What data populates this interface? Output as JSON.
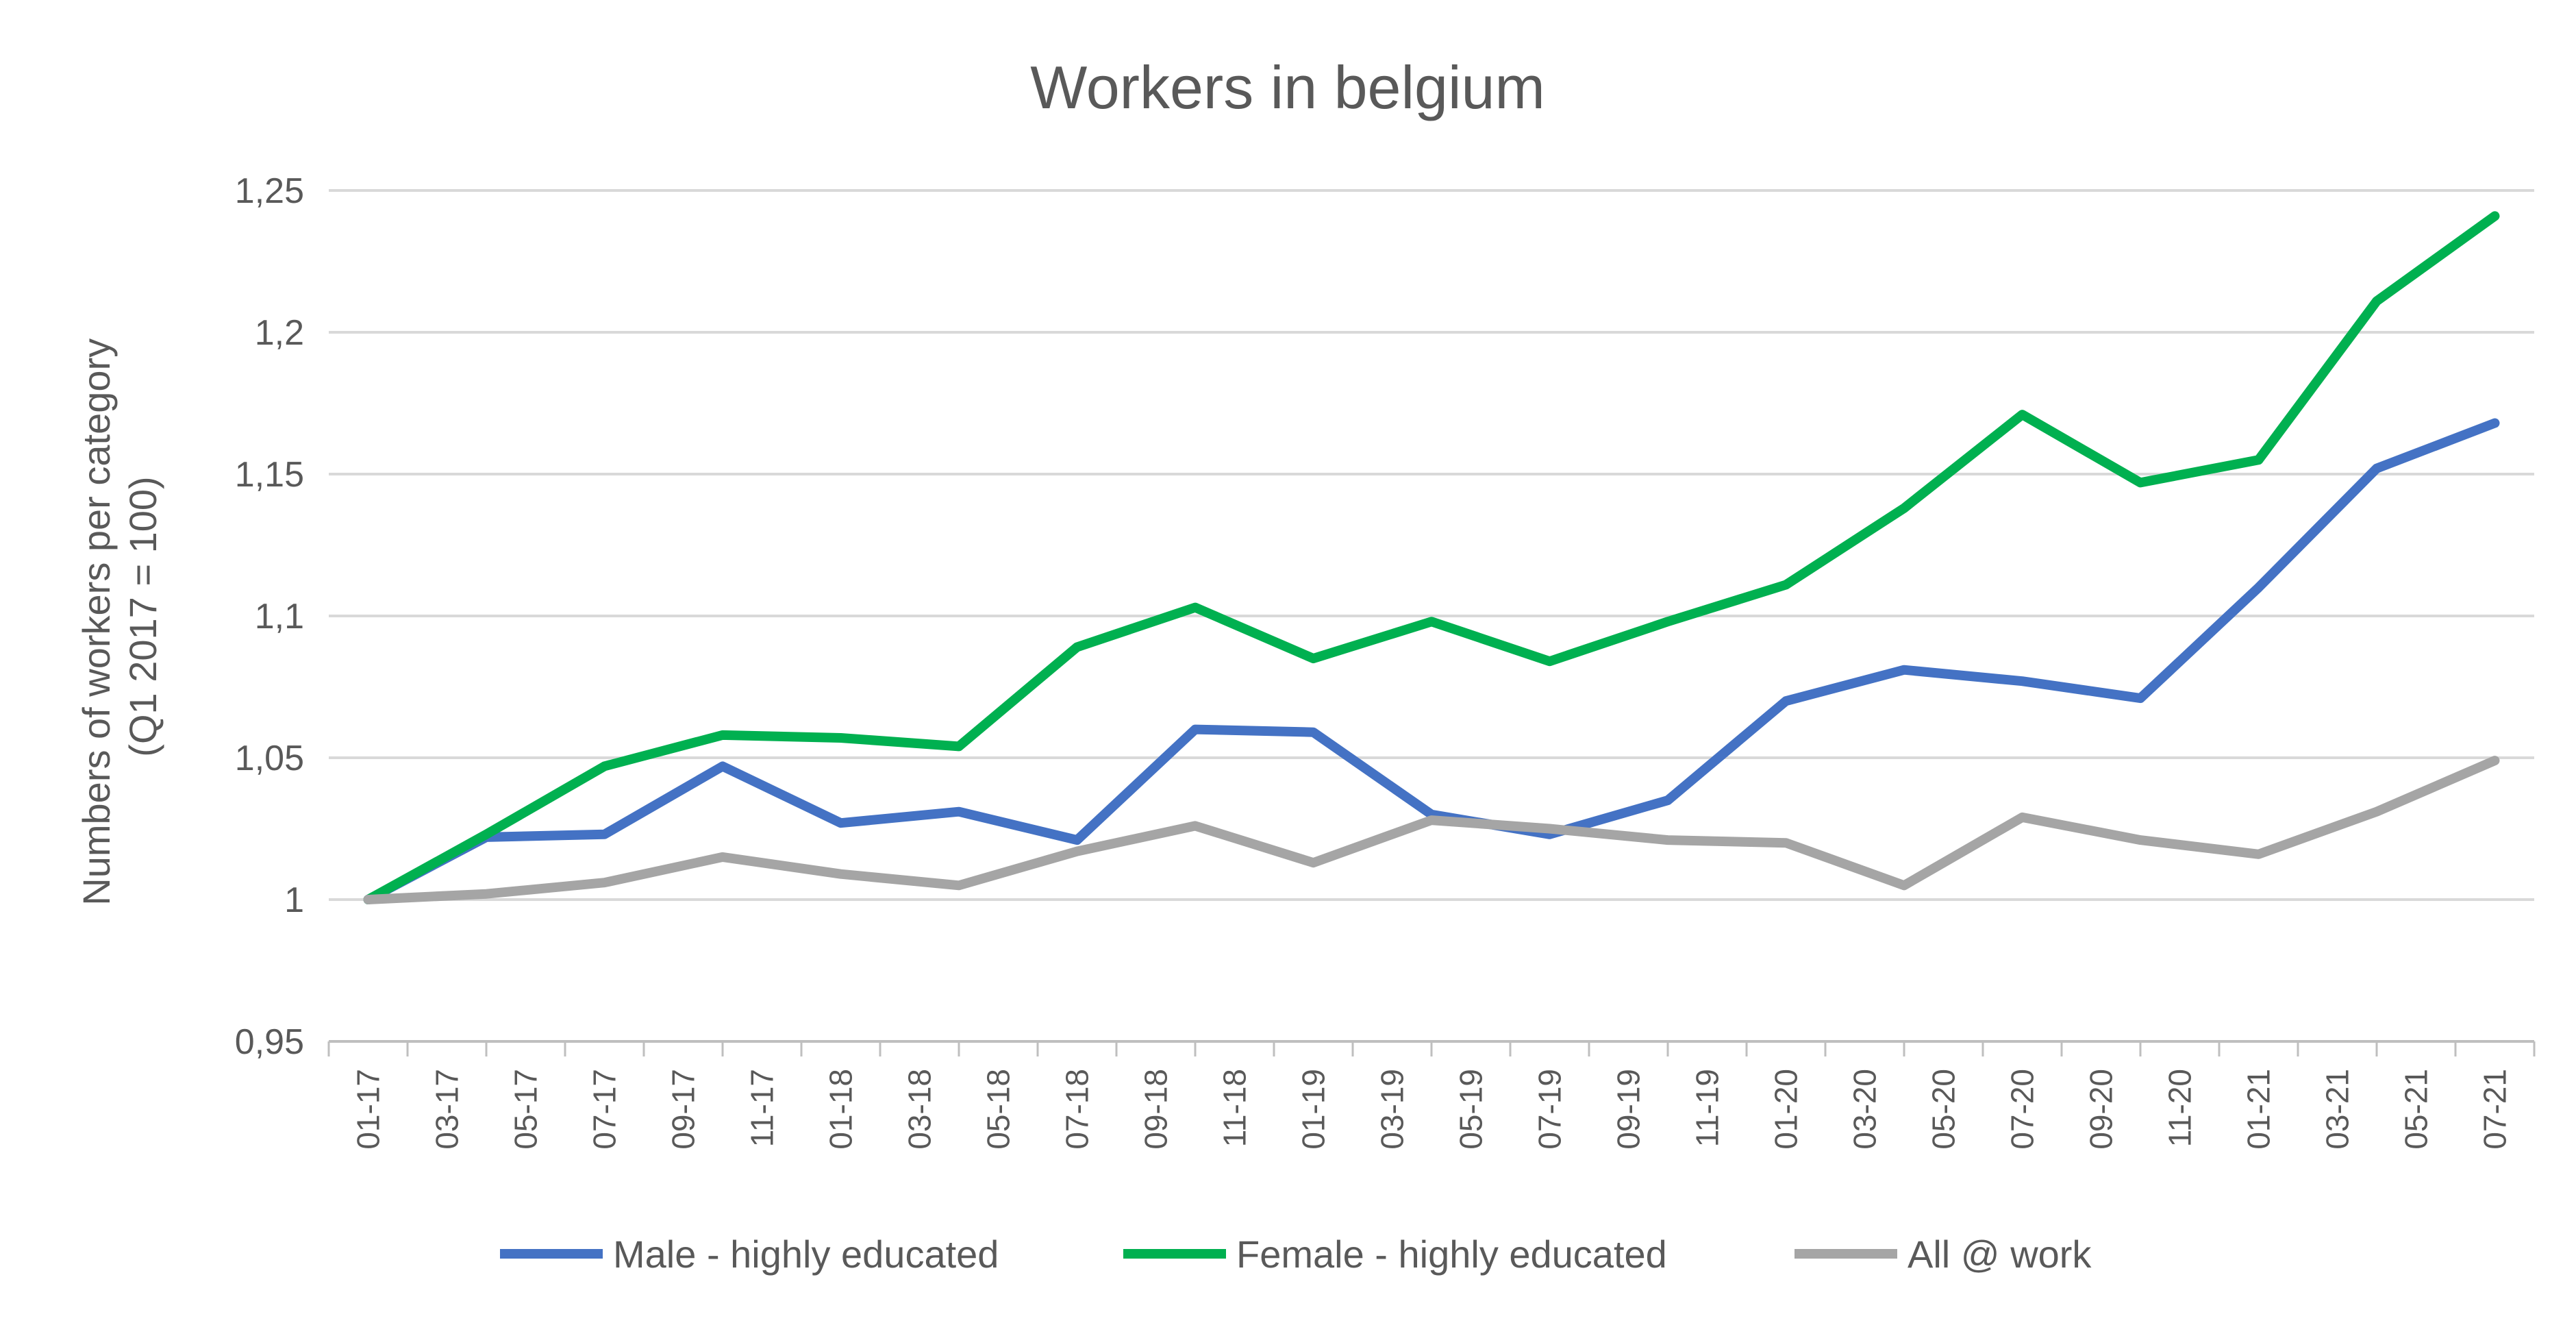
{
  "chart_data": {
    "type": "line",
    "title": "Workers in belgium",
    "ylabel_lines": [
      "Numbers of workers per category",
      "(Q1 2017 = 100)"
    ],
    "ylim": [
      0.95,
      1.25
    ],
    "yticks": [
      0.95,
      1,
      1.05,
      1.1,
      1.15,
      1.2,
      1.25
    ],
    "ytick_labels": [
      "0,95",
      "1",
      "1,05",
      "1,1",
      "1,15",
      "1,2",
      "1,25"
    ],
    "categories": [
      "01-17",
      "03-17",
      "05-17",
      "07-17",
      "09-17",
      "11-17",
      "01-18",
      "03-18",
      "05-18",
      "07-18",
      "09-18",
      "11-18",
      "01-19",
      "03-19",
      "05-19",
      "07-19",
      "09-19",
      "11-19",
      "01-20",
      "03-20",
      "05-20",
      "07-20",
      "09-20",
      "11-20",
      "01-21",
      "03-21",
      "05-21",
      "07-21"
    ],
    "grid": true,
    "legend_position": "bottom",
    "series": [
      {
        "name": "Male - highly educated",
        "color": "#4472C4",
        "points": [
          {
            "x": "01-17",
            "y": 1.0
          },
          {
            "x": "04-17",
            "y": 1.022
          },
          {
            "x": "07-17",
            "y": 1.023
          },
          {
            "x": "10-17",
            "y": 1.047
          },
          {
            "x": "01-18",
            "y": 1.027
          },
          {
            "x": "04-18",
            "y": 1.031
          },
          {
            "x": "07-18",
            "y": 1.021
          },
          {
            "x": "10-18",
            "y": 1.06
          },
          {
            "x": "01-19",
            "y": 1.059
          },
          {
            "x": "04-19",
            "y": 1.03
          },
          {
            "x": "07-19",
            "y": 1.023
          },
          {
            "x": "10-19",
            "y": 1.035
          },
          {
            "x": "01-20",
            "y": 1.07
          },
          {
            "x": "04-20",
            "y": 1.081
          },
          {
            "x": "07-20",
            "y": 1.077
          },
          {
            "x": "10-20",
            "y": 1.071
          },
          {
            "x": "01-21",
            "y": 1.11
          },
          {
            "x": "04-21",
            "y": 1.152
          },
          {
            "x": "07-21",
            "y": 1.168
          }
        ]
      },
      {
        "name": "Female - highly educated",
        "color": "#00B050",
        "points": [
          {
            "x": "01-17",
            "y": 1.0
          },
          {
            "x": "04-17",
            "y": 1.023
          },
          {
            "x": "07-17",
            "y": 1.047
          },
          {
            "x": "10-17",
            "y": 1.058
          },
          {
            "x": "01-18",
            "y": 1.057
          },
          {
            "x": "04-18",
            "y": 1.054
          },
          {
            "x": "07-18",
            "y": 1.089
          },
          {
            "x": "10-18",
            "y": 1.103
          },
          {
            "x": "01-19",
            "y": 1.085
          },
          {
            "x": "04-19",
            "y": 1.098
          },
          {
            "x": "07-19",
            "y": 1.084
          },
          {
            "x": "10-19",
            "y": 1.098
          },
          {
            "x": "01-20",
            "y": 1.111
          },
          {
            "x": "04-20",
            "y": 1.138
          },
          {
            "x": "07-20",
            "y": 1.171
          },
          {
            "x": "10-20",
            "y": 1.147
          },
          {
            "x": "01-21",
            "y": 1.155
          },
          {
            "x": "04-21",
            "y": 1.211
          },
          {
            "x": "07-21",
            "y": 1.241
          }
        ]
      },
      {
        "name": "All @ work",
        "color": "#A5A5A5",
        "points": [
          {
            "x": "01-17",
            "y": 1.0
          },
          {
            "x": "04-17",
            "y": 1.002
          },
          {
            "x": "07-17",
            "y": 1.006
          },
          {
            "x": "10-17",
            "y": 1.015
          },
          {
            "x": "01-18",
            "y": 1.009
          },
          {
            "x": "04-18",
            "y": 1.005
          },
          {
            "x": "07-18",
            "y": 1.017
          },
          {
            "x": "10-18",
            "y": 1.026
          },
          {
            "x": "01-19",
            "y": 1.013
          },
          {
            "x": "04-19",
            "y": 1.028
          },
          {
            "x": "07-19",
            "y": 1.025
          },
          {
            "x": "10-19",
            "y": 1.021
          },
          {
            "x": "01-20",
            "y": 1.02
          },
          {
            "x": "04-20",
            "y": 1.005
          },
          {
            "x": "07-20",
            "y": 1.029
          },
          {
            "x": "10-20",
            "y": 1.021
          },
          {
            "x": "01-21",
            "y": 1.016
          },
          {
            "x": "04-21",
            "y": 1.031
          },
          {
            "x": "07-21",
            "y": 1.049
          }
        ]
      }
    ]
  }
}
